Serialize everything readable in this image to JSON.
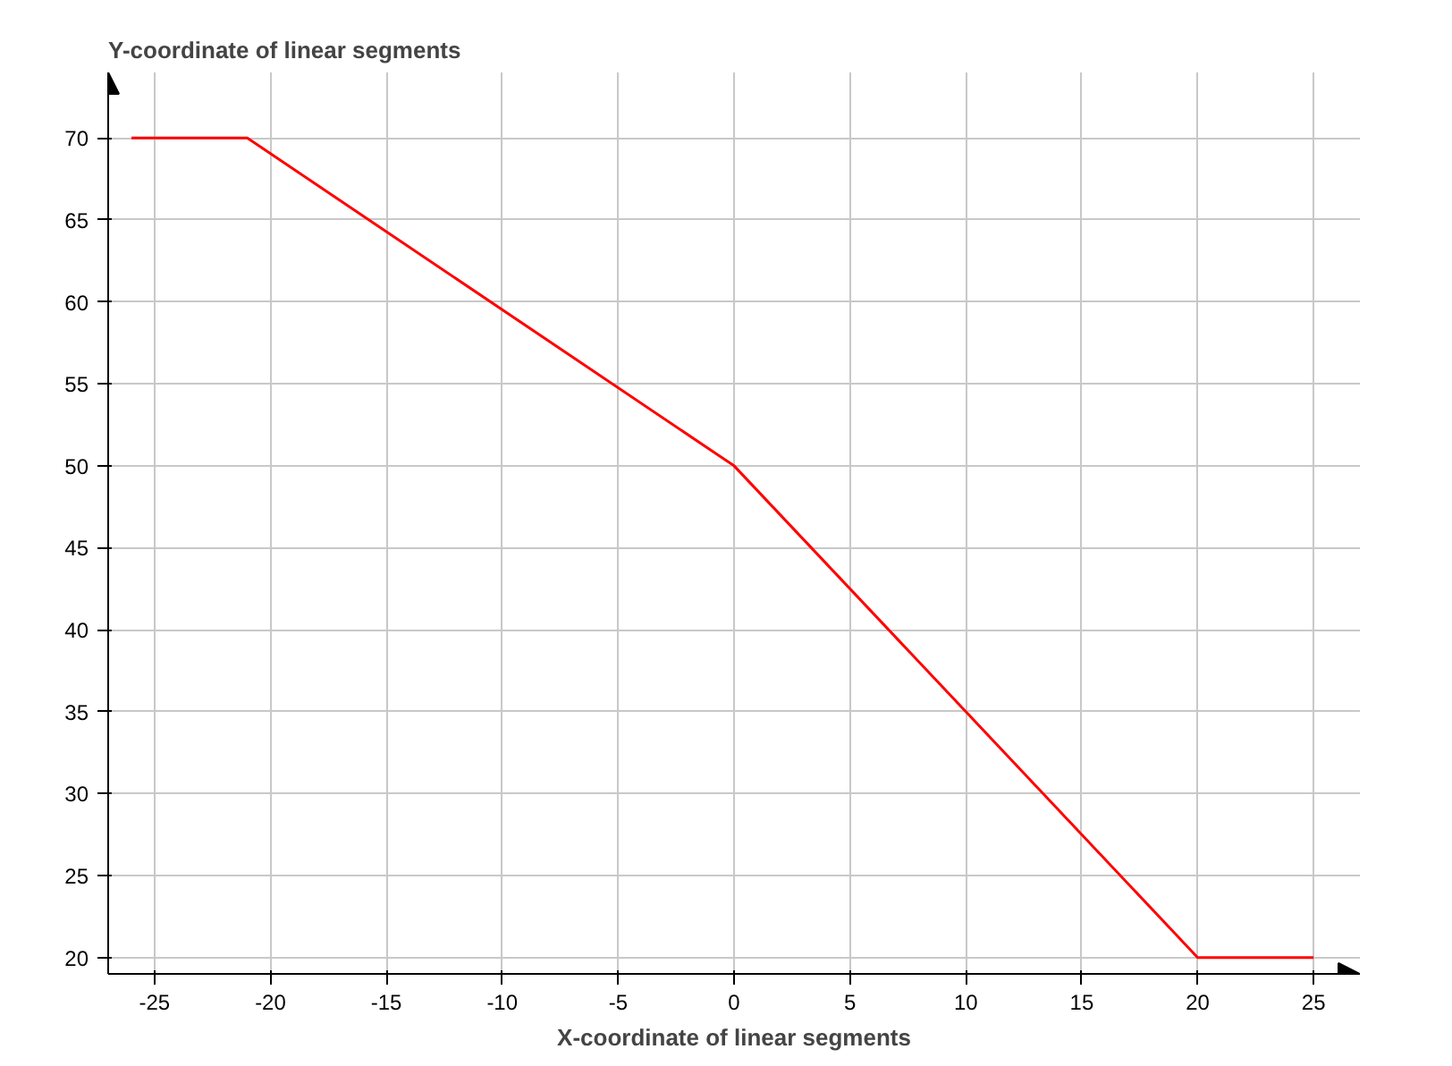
{
  "chart_data": {
    "type": "line",
    "xlabel": "X-coordinate of linear segments",
    "ylabel": "Y-coordinate of linear segments",
    "x": [
      -26,
      -21,
      0,
      20,
      25
    ],
    "series": [
      {
        "color": "#ff0000",
        "values": [
          70,
          70,
          50,
          20,
          20
        ]
      }
    ],
    "xlim": [
      -27,
      27
    ],
    "ylim": [
      19,
      74
    ],
    "xticks": [
      -25,
      -20,
      -15,
      -10,
      -5,
      0,
      5,
      10,
      15,
      20,
      25
    ],
    "yticks": [
      20,
      25,
      30,
      35,
      40,
      45,
      50,
      55,
      60,
      65,
      70
    ],
    "grid": true,
    "marker": "none",
    "line_style": "solid"
  }
}
